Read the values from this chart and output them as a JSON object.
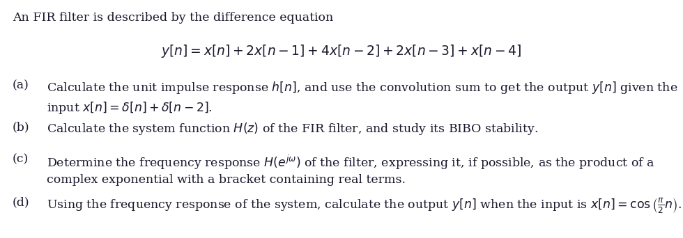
{
  "background_color": "#ffffff",
  "text_color": "#1a1a2e",
  "font_size": 12.5,
  "eq_font_size": 13.5,
  "intro": "An FIR filter is described by the difference equation",
  "equation": "$y[n] = x[n] + 2x[n-1] + 4x[n-2] + 2x[n-3] + x[n-4]$",
  "parts": [
    {
      "label": "(a)",
      "text_line1": "Calculate the unit impulse response $h[n]$, and use the convolution sum to get the output $y[n]$ given the",
      "text_line2": "input $x[n] = \\delta[n] + \\delta[n-2]$.",
      "has_line2": true
    },
    {
      "label": "(b)",
      "text_line1": "Calculate the system function $H(z)$ of the FIR filter, and study its BIBO stability.",
      "text_line2": "",
      "has_line2": false
    },
    {
      "label": "(c)",
      "text_line1": "Determine the frequency response $H(e^{j\\omega})$ of the filter, expressing it, if possible, as the product of a",
      "text_line2": "complex exponential with a bracket containing real terms.",
      "has_line2": true
    },
    {
      "label": "(d)",
      "text_line1": "Using the frequency response of the system, calculate the output $y[n]$ when the input is $x[n] = \\cos\\left(\\frac{\\pi}{2}n\\right)$.",
      "text_line2": "",
      "has_line2": false
    }
  ]
}
